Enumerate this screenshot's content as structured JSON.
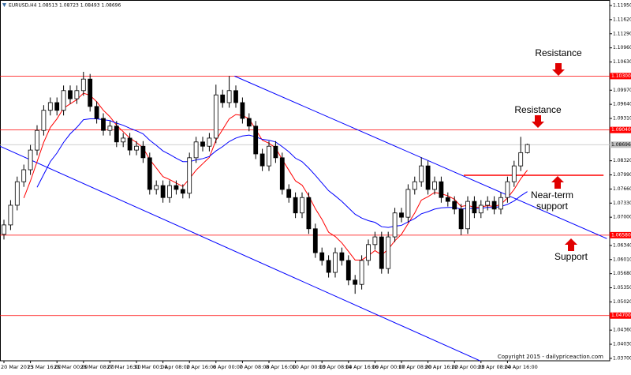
{
  "chart_data": {
    "type": "candlestick",
    "header": "EURUSD,H4  1.08513 1.08723 1.08493 1.08696",
    "copyright": "Copyright 2015 - dailypriceaction.com",
    "ylim": [
      1.0368,
      1.1195
    ],
    "yticks": [
      {
        "value": 1.1195,
        "label": "1.11950"
      },
      {
        "value": 1.1162,
        "label": "1.11620"
      },
      {
        "value": 1.1129,
        "label": "1.11290"
      },
      {
        "value": 1.1096,
        "label": "1.10960"
      },
      {
        "value": 1.1063,
        "label": "1.10630"
      },
      {
        "value": 1.0997,
        "label": "1.09970"
      },
      {
        "value": 1.0964,
        "label": "1.09640"
      },
      {
        "value": 1.0931,
        "label": "1.09310"
      },
      {
        "value": 1.0832,
        "label": "1.08320"
      },
      {
        "value": 1.0799,
        "label": "1.07990"
      },
      {
        "value": 1.0766,
        "label": "1.07660"
      },
      {
        "value": 1.0733,
        "label": "1.07330"
      },
      {
        "value": 1.07,
        "label": "1.07000"
      },
      {
        "value": 1.0634,
        "label": "1.06340"
      },
      {
        "value": 1.0601,
        "label": "1.06010"
      },
      {
        "value": 1.0568,
        "label": "1.05680"
      },
      {
        "value": 1.0535,
        "label": "1.05350"
      },
      {
        "value": 1.0502,
        "label": "1.05020"
      },
      {
        "value": 1.0436,
        "label": "1.04360"
      },
      {
        "value": 1.0403,
        "label": "1.04030"
      },
      {
        "value": 1.037,
        "label": "1.03700"
      }
    ],
    "xlabels": [
      "20 Mar 2015",
      "23 Mar 16:00",
      "25 Mar 00:00",
      "26 Mar 08:00",
      "27 Mar 16:00",
      "31 Mar 00:00",
      "1 Apr 08:00",
      "2 Apr 16:00",
      "6 Apr 00:00",
      "7 Apr 08:00",
      "8 Apr 16:00",
      "10 Apr 00:00",
      "13 Apr 08:00",
      "14 Apr 16:00",
      "16 Apr 00:00",
      "17 Apr 08:00",
      "20 Apr 16:00",
      "22 Apr 00:00",
      "23 Apr 08:00",
      "24 Apr 16:00"
    ],
    "ohlc": [
      [
        1.066,
        1.0694,
        1.0648,
        1.0682
      ],
      [
        1.0682,
        1.074,
        1.067,
        1.0728
      ],
      [
        1.0728,
        1.0795,
        1.0716,
        1.0783
      ],
      [
        1.0783,
        1.0823,
        1.0771,
        1.0811
      ],
      [
        1.0811,
        1.0869,
        1.0799,
        1.0857
      ],
      [
        1.0857,
        1.0915,
        1.0845,
        1.0903
      ],
      [
        1.0903,
        1.0962,
        1.0891,
        1.095
      ],
      [
        1.095,
        1.098,
        1.0938,
        1.0968
      ],
      [
        1.0968,
        1.098,
        1.0938,
        1.095
      ],
      [
        1.095,
        1.1008,
        1.0938,
        1.0996
      ],
      [
        1.0996,
        1.1008,
        1.0965,
        1.0977
      ],
      [
        1.0977,
        1.1008,
        1.0965,
        1.0996
      ],
      [
        1.0996,
        1.104,
        1.0984,
        1.1023
      ],
      [
        1.1023,
        1.1035,
        1.0947,
        1.0959
      ],
      [
        1.0959,
        1.0971,
        1.0919,
        1.0931
      ],
      [
        1.0931,
        1.0943,
        1.0891,
        1.0903
      ],
      [
        1.0903,
        1.0925,
        1.0891,
        1.0913
      ],
      [
        1.0913,
        1.0925,
        1.0864,
        1.0876
      ],
      [
        1.0876,
        1.0897,
        1.0864,
        1.0885
      ],
      [
        1.0885,
        1.0897,
        1.0845,
        1.0857
      ],
      [
        1.0857,
        1.0878,
        1.0845,
        1.0866
      ],
      [
        1.0866,
        1.0878,
        1.0827,
        1.0839
      ],
      [
        1.0839,
        1.0851,
        1.0753,
        1.0765
      ],
      [
        1.0765,
        1.0786,
        1.0753,
        1.0774
      ],
      [
        1.0774,
        1.0786,
        1.0734,
        1.0746
      ],
      [
        1.0746,
        1.0786,
        1.0734,
        1.0774
      ],
      [
        1.0774,
        1.0786,
        1.0753,
        1.0765
      ],
      [
        1.0765,
        1.0777,
        1.0744,
        1.0756
      ],
      [
        1.0756,
        1.0851,
        1.0744,
        1.0839
      ],
      [
        1.0839,
        1.0888,
        1.0827,
        1.0876
      ],
      [
        1.0876,
        1.0888,
        1.0854,
        1.0866
      ],
      [
        1.0866,
        1.0897,
        1.0854,
        1.0885
      ],
      [
        1.0885,
        1.101,
        1.0873,
        1.0986
      ],
      [
        1.0986,
        1.0998,
        1.0956,
        1.0968
      ],
      [
        1.0968,
        1.103,
        1.0956,
        1.0996
      ],
      [
        1.0996,
        1.1008,
        1.0956,
        1.0968
      ],
      [
        1.0968,
        1.098,
        1.0919,
        1.0931
      ],
      [
        1.0931,
        1.0943,
        1.0901,
        1.0913
      ],
      [
        1.0913,
        1.0925,
        1.0836,
        1.0848
      ],
      [
        1.0848,
        1.086,
        1.0808,
        1.082
      ],
      [
        1.082,
        1.0878,
        1.0808,
        1.0866
      ],
      [
        1.0866,
        1.0878,
        1.0827,
        1.0839
      ],
      [
        1.0839,
        1.0851,
        1.0753,
        1.0765
      ],
      [
        1.0765,
        1.0777,
        1.0734,
        1.0746
      ],
      [
        1.0746,
        1.0758,
        1.0698,
        1.071
      ],
      [
        1.071,
        1.0758,
        1.0698,
        1.0746
      ],
      [
        1.0746,
        1.0758,
        1.0661,
        1.0673
      ],
      [
        1.0673,
        1.0685,
        1.0605,
        1.0617
      ],
      [
        1.0617,
        1.0629,
        1.0587,
        1.0599
      ],
      [
        1.0599,
        1.0611,
        1.0559,
        1.0571
      ],
      [
        1.0571,
        1.0629,
        1.0559,
        1.0617
      ],
      [
        1.0617,
        1.0629,
        1.0587,
        1.0599
      ],
      [
        1.0599,
        1.0611,
        1.0541,
        1.0553
      ],
      [
        1.0553,
        1.0565,
        1.0521,
        1.0543
      ],
      [
        1.0543,
        1.0611,
        1.0531,
        1.0599
      ],
      [
        1.0599,
        1.0648,
        1.0587,
        1.0636
      ],
      [
        1.0636,
        1.0666,
        1.0624,
        1.0654
      ],
      [
        1.0654,
        1.0666,
        1.0568,
        1.058
      ],
      [
        1.058,
        1.0666,
        1.0568,
        1.0654
      ],
      [
        1.0654,
        1.0722,
        1.0642,
        1.071
      ],
      [
        1.071,
        1.0722,
        1.0688,
        1.07
      ],
      [
        1.07,
        1.0777,
        1.0688,
        1.0765
      ],
      [
        1.0765,
        1.0795,
        1.0753,
        1.0783
      ],
      [
        1.0783,
        1.084,
        1.0771,
        1.082
      ],
      [
        1.082,
        1.0832,
        1.0753,
        1.0765
      ],
      [
        1.0765,
        1.0795,
        1.0753,
        1.0783
      ],
      [
        1.0783,
        1.0795,
        1.0734,
        1.0746
      ],
      [
        1.0746,
        1.0758,
        1.0725,
        1.0737
      ],
      [
        1.0737,
        1.0749,
        1.0707,
        1.0719
      ],
      [
        1.0719,
        1.0731,
        1.0658,
        1.0673
      ],
      [
        1.0673,
        1.0749,
        1.0661,
        1.0737
      ],
      [
        1.0737,
        1.0749,
        1.0698,
        1.071
      ],
      [
        1.071,
        1.074,
        1.0698,
        1.0728
      ],
      [
        1.0728,
        1.0749,
        1.0716,
        1.0737
      ],
      [
        1.0737,
        1.0749,
        1.0707,
        1.0719
      ],
      [
        1.0719,
        1.0758,
        1.0707,
        1.0746
      ],
      [
        1.0746,
        1.0795,
        1.0734,
        1.0783
      ],
      [
        1.0783,
        1.0832,
        1.0771,
        1.082
      ],
      [
        1.082,
        1.0888,
        1.0808,
        1.0851
      ],
      [
        1.0851,
        1.0872,
        1.0849,
        1.087
      ]
    ],
    "series": [
      {
        "color": "#ff0000",
        "values": [
          null,
          null,
          null,
          1.0745,
          1.0785,
          1.083,
          1.0875,
          1.091,
          1.093,
          1.0955,
          1.0965,
          1.0975,
          1.099,
          1.0985,
          1.097,
          1.095,
          1.0935,
          1.0915,
          1.09,
          1.0885,
          1.0875,
          1.0862,
          1.0835,
          1.0815,
          1.0795,
          1.0788,
          1.078,
          1.0772,
          1.079,
          1.081,
          1.0825,
          1.084,
          1.088,
          1.0905,
          1.093,
          1.094,
          1.0938,
          1.093,
          1.0905,
          1.088,
          1.0873,
          1.0862,
          1.0835,
          1.081,
          1.0785,
          1.0775,
          1.075,
          1.072,
          1.0695,
          1.0665,
          1.0655,
          1.064,
          1.062,
          1.06,
          1.06,
          1.061,
          1.0622,
          1.0612,
          1.0625,
          1.0645,
          1.066,
          1.0685,
          1.071,
          1.074,
          1.0748,
          1.0758,
          1.0755,
          1.075,
          1.0742,
          1.0725,
          1.0728,
          1.0723,
          1.0724,
          1.0727,
          1.0725,
          1.073,
          1.0745,
          1.0765,
          1.079,
          1.081
        ]
      },
      {
        "color": "#0000ff",
        "values": [
          null,
          null,
          null,
          null,
          null,
          1.077,
          1.08,
          1.083,
          1.085,
          1.0875,
          1.0895,
          1.091,
          1.0928,
          1.093,
          1.093,
          1.0928,
          1.0926,
          1.092,
          1.0915,
          1.0908,
          1.0902,
          1.0895,
          1.088,
          1.0868,
          1.0855,
          1.0847,
          1.0838,
          1.083,
          1.083,
          1.0834,
          1.0837,
          1.0842,
          1.0855,
          1.0865,
          1.0877,
          1.0885,
          1.089,
          1.0892,
          1.0888,
          1.0882,
          1.088,
          1.0876,
          1.0865,
          1.0853,
          1.0838,
          1.083,
          1.0815,
          1.0798,
          1.078,
          1.0762,
          1.075,
          1.0737,
          1.0722,
          1.0707,
          1.0698,
          1.0692,
          1.0688,
          1.0678,
          1.0676,
          1.0679,
          1.0681,
          1.0689,
          1.0697,
          1.0708,
          1.0713,
          1.0719,
          1.0722,
          1.0723,
          1.0723,
          1.0719,
          1.0721,
          1.072,
          1.0721,
          1.0723,
          1.0723,
          1.0725,
          1.073,
          1.0738,
          1.075,
          1.076
        ]
      }
    ],
    "levels": [
      {
        "value": 1.103,
        "label": "1.10300"
      },
      {
        "value": 1.0904,
        "label": "1.09040"
      },
      {
        "value": 1.0658,
        "label": "1.06580"
      },
      {
        "value": 1.047,
        "label": "1.04700"
      }
    ],
    "current": {
      "value": 1.08696,
      "label": "1.08696"
    },
    "trendlines": [
      {
        "color": "#0000ff",
        "x": [
          34.8,
          91
        ],
        "y": [
          1.103,
          1.065
        ]
      },
      {
        "color": "#0000ff",
        "x": [
          -0.6,
          73.2
        ],
        "y": [
          1.0866,
          1.0355
        ]
      },
      {
        "color": "#ff0000",
        "x": [
          69.4,
          90.5
        ],
        "y": [
          1.0798,
          1.0798
        ]
      }
    ],
    "annotations": [
      "Resistance",
      "Resistance",
      "Near-term support",
      "Support"
    ]
  }
}
